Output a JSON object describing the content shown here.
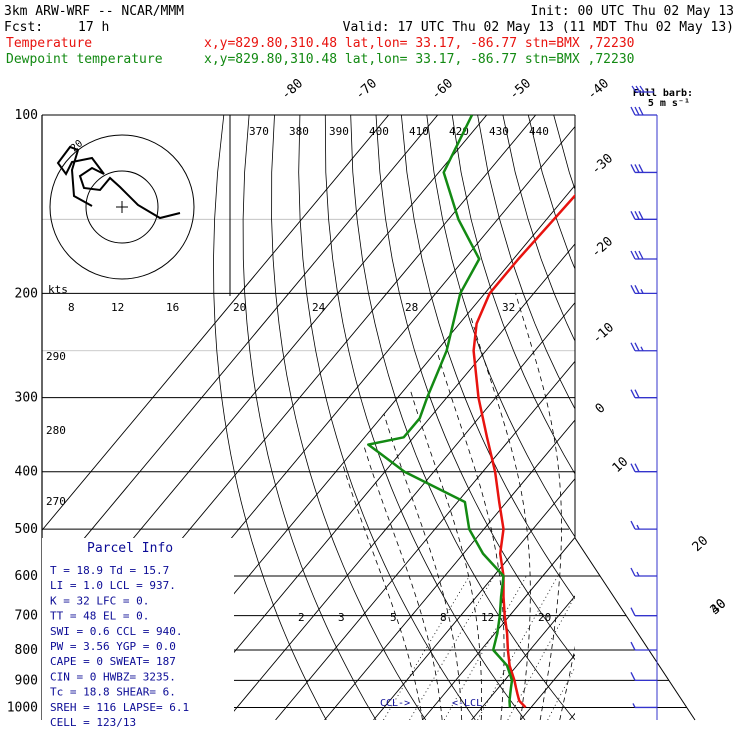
{
  "header": {
    "model": "3km ARW-WRF -- NCAR/MMM",
    "init": "Init: 00 UTC Thu 02 May 13",
    "fcst_label": "Fcst:",
    "fcst_value": "17 h",
    "valid": "Valid: 17 UTC Thu 02 May 13 (11 MDT Thu 02 May 13)",
    "temp_line": {
      "name": "Temperature",
      "loc": "x,y=829.80,310.48   lat,lon= 33.17, -86.77   stn=BMX ,72230"
    },
    "dew_line": {
      "name": "Dewpoint temperature",
      "loc": "x,y=829.80,310.48   lat,lon= 33.17, -86.77   stn=BMX ,72230"
    },
    "barb_title": "Full barb:",
    "barb_unit": "5 m s⁻¹"
  },
  "colors": {
    "temperature": "#e8130f",
    "dewpoint": "#138a13",
    "grid": "#000000",
    "barbs": "#3333cc",
    "text_blue": "#0b0b96"
  },
  "chart_data": {
    "type": "line",
    "title": "",
    "y_axis": "pressure (hPa)",
    "pressure_ticks": [
      100,
      200,
      300,
      400,
      500,
      600,
      700,
      800,
      900,
      1000
    ],
    "isotherm_labels": [
      "-80",
      "-70",
      "-60",
      "-50",
      "-40",
      "-30",
      "-20",
      "-10",
      "0",
      "10",
      "20",
      "30",
      "40"
    ],
    "theta_labels": [
      "370",
      "380",
      "390",
      "400",
      "410",
      "420",
      "430",
      "440"
    ],
    "theta_left_labels": [
      "290",
      "280",
      "270"
    ],
    "mixing_ratio_labels": [
      "2",
      "3",
      "5",
      "8",
      "12",
      "20"
    ],
    "hodograph_speed_labels": [
      "8",
      "12",
      "16",
      "20",
      "24",
      "28",
      "32"
    ],
    "hodograph_unit": "kts",
    "hodograph_ring_label": "20",
    "series": [
      {
        "name": "Temperature",
        "pressure": [
          1000,
          975,
          950,
          925,
          900,
          850,
          800,
          750,
          700,
          650,
          600,
          550,
          500,
          450,
          400,
          350,
          300,
          250,
          225,
          200,
          175,
          150,
          125,
          100
        ],
        "temperature": [
          18.9,
          16.5,
          15.0,
          13.5,
          12.0,
          8.5,
          5.5,
          2.5,
          -1.0,
          -4.5,
          -8.0,
          -12.5,
          -16.0,
          -21.5,
          -27.5,
          -35.0,
          -43.5,
          -52.5,
          -56.5,
          -59.0,
          -59.0,
          -58.5,
          -58.0,
          -57.0
        ]
      },
      {
        "name": "Dewpoint temperature",
        "pressure": [
          1000,
          975,
          950,
          925,
          900,
          850,
          800,
          750,
          700,
          650,
          600,
          550,
          500,
          450,
          400,
          360,
          350,
          325,
          300,
          250,
          200,
          175,
          150,
          125,
          100
        ],
        "dewpoint": [
          15.7,
          14.5,
          13.5,
          12.5,
          11.5,
          8.0,
          2.5,
          0.5,
          -2.0,
          -5.0,
          -8.0,
          -16.0,
          -23.0,
          -28.5,
          -46.0,
          -58.0,
          -52.0,
          -52.0,
          -54.0,
          -58.0,
          -65.0,
          -67.0,
          -78.0,
          -89.0,
          -93.0
        ]
      }
    ],
    "wind_barbs_m_s": [
      {
        "p": 100,
        "speed": 30,
        "dir": 270
      },
      {
        "p": 125,
        "speed": 30,
        "dir": 270
      },
      {
        "p": 150,
        "speed": 30,
        "dir": 265
      },
      {
        "p": 175,
        "speed": 30,
        "dir": 265
      },
      {
        "p": 200,
        "speed": 25,
        "dir": 260
      },
      {
        "p": 250,
        "speed": 25,
        "dir": 255
      },
      {
        "p": 300,
        "speed": 20,
        "dir": 255
      },
      {
        "p": 400,
        "speed": 20,
        "dir": 250
      },
      {
        "p": 500,
        "speed": 15,
        "dir": 250
      },
      {
        "p": 600,
        "speed": 15,
        "dir": 245
      },
      {
        "p": 700,
        "speed": 10,
        "dir": 240
      },
      {
        "p": 800,
        "speed": 10,
        "dir": 235
      },
      {
        "p": 900,
        "speed": 10,
        "dir": 230
      },
      {
        "p": 1000,
        "speed": 5,
        "dir": 220
      }
    ],
    "markers": {
      "ccl": "CCL",
      "lcl": "LCL"
    }
  },
  "parcel_info": {
    "title": "Parcel Info",
    "rows": [
      "T   =    18.9  Td =  15.7",
      "LI  =     1.0  LCL =  937.",
      "K   =      32  LFC =    0.",
      "TT  =      48  EL  =    0.",
      "SWI =     0.6  CCL =  940.",
      "PW  =    3.56  YGP =   0.0",
      "CAPE =      0  SWEAT=  187",
      "CIN  =      0  HWBZ= 3235.",
      "Tc  =    18.8  SHEAR=   6.",
      "SREH =    116  LAPSE=  6.1",
      "CELL = 123/13"
    ]
  }
}
